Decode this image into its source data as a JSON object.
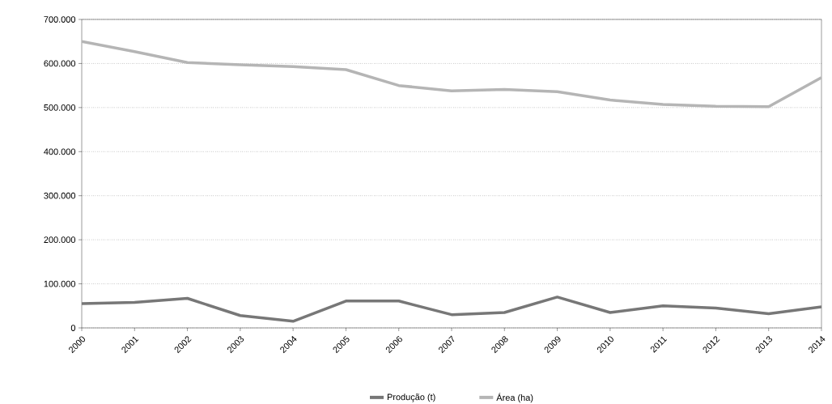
{
  "chart_data": {
    "type": "line",
    "categories": [
      "2000",
      "2001",
      "2002",
      "2003",
      "2004",
      "2005",
      "2006",
      "2007",
      "2008",
      "2009",
      "2010",
      "2011",
      "2012",
      "2013",
      "2014"
    ],
    "series": [
      {
        "name": "Produção (t)",
        "color": "#777777",
        "values": [
          55000,
          58000,
          67000,
          28000,
          15000,
          61000,
          61000,
          30000,
          35000,
          70000,
          35000,
          50000,
          45000,
          32000,
          48000
        ]
      },
      {
        "name": "Área (ha)",
        "color": "#b5b5b5",
        "values": [
          650000,
          627000,
          602000,
          597000,
          593000,
          586000,
          550000,
          538000,
          541000,
          536000,
          517000,
          507000,
          503000,
          502000,
          568000
        ]
      }
    ],
    "ylim": [
      0,
      700000
    ],
    "yticks": [
      {
        "value": 0,
        "label": "0"
      },
      {
        "value": 100000,
        "label": "100.000"
      },
      {
        "value": 200000,
        "label": "200.000"
      },
      {
        "value": 300000,
        "label": "300.000"
      },
      {
        "value": 400000,
        "label": "400.000"
      },
      {
        "value": 500000,
        "label": "500.000"
      },
      {
        "value": 600000,
        "label": "600.000"
      },
      {
        "value": 700000,
        "label": "700.000"
      }
    ],
    "grid": "y",
    "legend": "bottom",
    "marker": "none",
    "line_style": "solid"
  }
}
